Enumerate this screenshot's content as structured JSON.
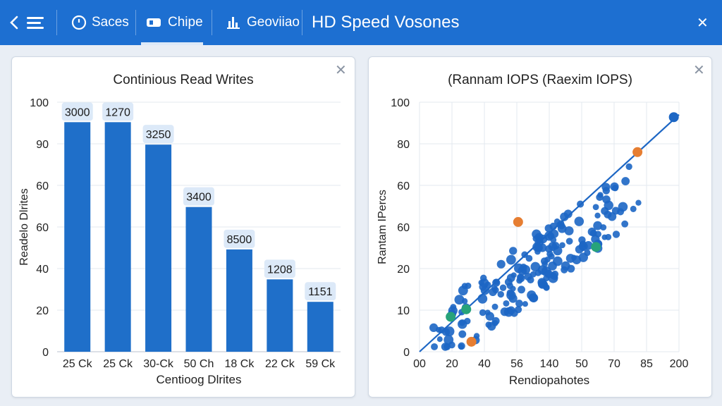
{
  "topbar": {
    "back_label": "<",
    "menu_label": "≡",
    "tab1": {
      "icon": "clock-icon",
      "label": "Saces"
    },
    "tab2": {
      "icon": "chip-icon",
      "label": "Chipe"
    },
    "tab3": {
      "icon": "chart-icon",
      "label": "Geoviiao"
    },
    "title": "HD Speed Vosones",
    "close": "✕"
  },
  "colors": {
    "topbar": "#1d6fd1",
    "bar": "#1f6fc9",
    "point": "#1c66c4",
    "orange": "#e67e32",
    "green": "#27a37a"
  },
  "left_panel": {
    "title": "Continious Read Writes",
    "close": "✕"
  },
  "right_panel": {
    "title": "(Rannam IOPS (Raexim IOPS)",
    "close": "✕"
  },
  "chart_data": [
    {
      "type": "bar",
      "title": "Continious Read Writes",
      "xlabel": "Centioog Dlrites",
      "ylabel": "Readelo Dlrites",
      "ytick_labels": [
        "100",
        "90",
        "60",
        "60",
        "40",
        "20",
        "0"
      ],
      "categories": [
        "25 Ck",
        "25 Ck",
        "30-Ck",
        "50 Ch",
        "18 Ck",
        "22 Ck",
        "59 Ck"
      ],
      "values": [
        92,
        92,
        83,
        58,
        41,
        29,
        20
      ],
      "data_labels": [
        "3000",
        "1270",
        "3250",
        "3400",
        "8500",
        "1208",
        "1151"
      ]
    },
    {
      "type": "scatter",
      "title": "(Rannam IOPS (Raexim IOPS)",
      "xlabel": "Rendiopahotes",
      "ylabel": "Rantam IPercs",
      "xtick_labels": [
        "00",
        "20",
        "40",
        "56",
        "140",
        "50",
        "70",
        "85",
        "200"
      ],
      "ytick_labels": [
        "100",
        "80",
        "60",
        "60",
        "20",
        "10",
        "0"
      ],
      "trendline": {
        "from": [
          0,
          0
        ],
        "to": [
          100,
          95
        ]
      },
      "highlighted_points": [
        {
          "x": 98,
          "y": 94,
          "color": "blue"
        },
        {
          "x": 84,
          "y": 80,
          "color": "orange"
        },
        {
          "x": 38,
          "y": 52,
          "color": "orange"
        },
        {
          "x": 20,
          "y": 4,
          "color": "orange"
        },
        {
          "x": 68,
          "y": 42,
          "color": "green"
        },
        {
          "x": 12,
          "y": 14,
          "color": "green"
        },
        {
          "x": 18,
          "y": 17,
          "color": "green"
        }
      ]
    }
  ]
}
